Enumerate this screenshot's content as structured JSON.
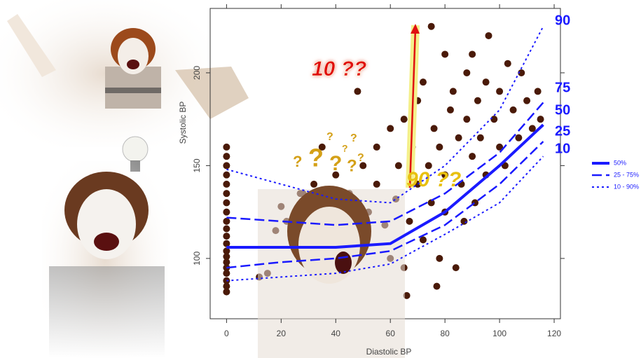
{
  "chart_data": {
    "type": "scatter",
    "x_label": "Diastolic BP",
    "y_label": "Systolic BP",
    "xlim": [
      -6,
      122.3
    ],
    "ylim": [
      67.5,
      234.7
    ],
    "xticks": [
      0,
      20,
      40,
      60,
      80,
      100,
      120
    ],
    "yticks": [
      100,
      150,
      200
    ],
    "point_color": "#4a1a08",
    "x": [
      0,
      0,
      0,
      0,
      0,
      0,
      0,
      0,
      0,
      0,
      0,
      0,
      0,
      0,
      0,
      0,
      0,
      0,
      0,
      0,
      15,
      18,
      20,
      22,
      25,
      28,
      30,
      32,
      35,
      35,
      38,
      40,
      42,
      45,
      48,
      50,
      52,
      55,
      55,
      58,
      60,
      60,
      62,
      63,
      65,
      65,
      67,
      68,
      70,
      70,
      72,
      72,
      74,
      75,
      75,
      76,
      78,
      78,
      80,
      80,
      80,
      82,
      83,
      84,
      85,
      86,
      87,
      88,
      88,
      90,
      90,
      91,
      92,
      93,
      95,
      95,
      96,
      98,
      100,
      100,
      102,
      103,
      105,
      107,
      108,
      110,
      112,
      114,
      115,
      77,
      66,
      48,
      27,
      12
    ],
    "values": [
      82,
      85,
      88,
      92,
      95,
      98,
      101,
      104,
      108,
      112,
      116,
      120,
      125,
      130,
      135,
      140,
      145,
      150,
      155,
      160,
      92,
      115,
      128,
      120,
      105,
      135,
      110,
      140,
      98,
      160,
      125,
      145,
      115,
      135,
      108,
      150,
      125,
      160,
      140,
      118,
      170,
      100,
      132,
      150,
      175,
      95,
      120,
      160,
      140,
      185,
      110,
      195,
      150,
      225,
      130,
      170,
      160,
      100,
      210,
      145,
      125,
      180,
      190,
      95,
      165,
      140,
      120,
      200,
      175,
      155,
      210,
      130,
      185,
      165,
      145,
      195,
      220,
      175,
      160,
      190,
      150,
      205,
      180,
      165,
      200,
      185,
      170,
      190,
      175,
      85,
      80,
      190,
      135,
      90
    ],
    "quantile_x": [
      0,
      20,
      40,
      60,
      80,
      100,
      116
    ],
    "quantile_lines": [
      {
        "label": "90",
        "style": "dotted",
        "width": 2,
        "values": [
          148,
          140,
          132,
          130,
          150,
          180,
          225
        ]
      },
      {
        "label": "75",
        "style": "dashed",
        "width": 2.5,
        "values": [
          122,
          120,
          118,
          120,
          135,
          157,
          184
        ]
      },
      {
        "label": "50",
        "style": "solid",
        "width": 4,
        "values": [
          106,
          106,
          106,
          108,
          125,
          150,
          172
        ]
      },
      {
        "label": "25",
        "style": "dashed",
        "width": 2.5,
        "values": [
          95,
          98,
          100,
          104,
          118,
          140,
          163
        ]
      },
      {
        "label": "10",
        "style": "dotted",
        "width": 2,
        "values": [
          88,
          90,
          92,
          97,
          113,
          130,
          155
        ]
      }
    ],
    "line_color": "#1a1aff",
    "legend": [
      {
        "label": "50%",
        "style": "solid",
        "width": 4
      },
      {
        "label": "25 - 75%",
        "style": "dashed",
        "width": 2.5
      },
      {
        "label": "10 - 90%",
        "style": "dotted",
        "width": 2
      }
    ],
    "annotations": [
      {
        "text": "10 ??",
        "color": "#e01010"
      },
      {
        "text": "90 ??",
        "color": "#e8c010"
      },
      {
        "text": "?"
      }
    ]
  }
}
